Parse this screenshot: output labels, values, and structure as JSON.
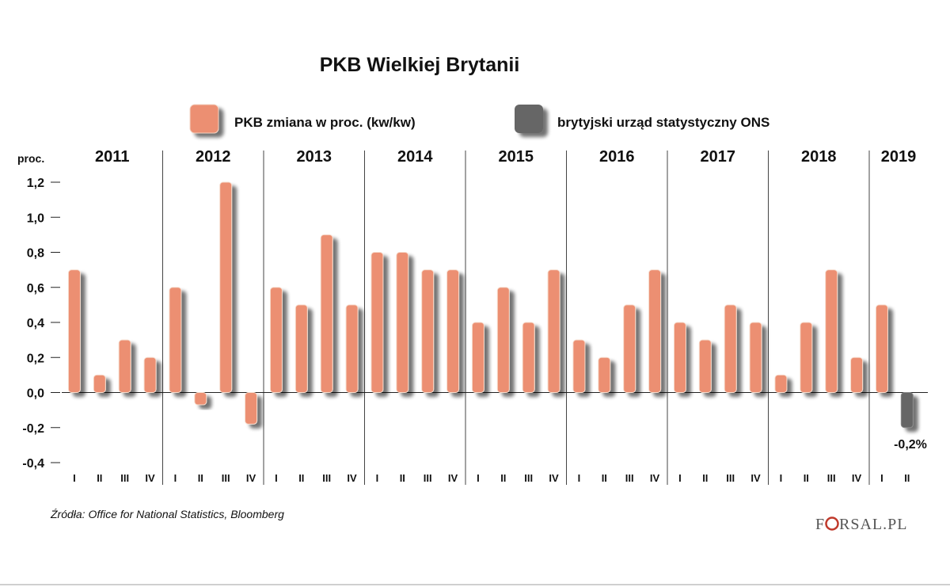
{
  "chart_data": {
    "type": "bar",
    "title": "PKB Wielkiej Brytanii",
    "ylabel": "proc.",
    "ylim": [
      -0.4,
      1.2
    ],
    "yticks": [
      "1,2",
      "1,0",
      "0,8",
      "0,6",
      "0,4",
      "0,2",
      "0,0",
      "-0,2",
      "-0,4"
    ],
    "ytick_values": [
      1.2,
      1.0,
      0.8,
      0.6,
      0.4,
      0.2,
      0.0,
      -0.2,
      -0.4
    ],
    "years": [
      "2011",
      "2012",
      "2013",
      "2014",
      "2015",
      "2016",
      "2017",
      "2018",
      "2019"
    ],
    "quarter_labels": [
      "I",
      "II",
      "III",
      "IV",
      "I",
      "II",
      "III",
      "IV",
      "I",
      "II",
      "III",
      "IV",
      "I",
      "II",
      "III",
      "IV",
      "I",
      "II",
      "III",
      "IV",
      "I",
      "II",
      "III",
      "IV",
      "I",
      "II",
      "III",
      "IV",
      "I",
      "II",
      "III",
      "IV",
      "I",
      "II"
    ],
    "series": [
      {
        "name": "PKB zmiana w proc. (kw/kw)",
        "color": "#ec8f72",
        "values": [
          0.7,
          0.1,
          0.3,
          0.2,
          0.6,
          -0.07,
          1.2,
          -0.18,
          0.6,
          0.5,
          0.9,
          0.5,
          0.8,
          0.8,
          0.7,
          0.7,
          0.4,
          0.6,
          0.4,
          0.7,
          0.3,
          0.2,
          0.5,
          0.7,
          0.4,
          0.3,
          0.5,
          0.4,
          0.1,
          0.4,
          0.7,
          0.2,
          0.5,
          null
        ]
      },
      {
        "name": "brytyjski urząd statystyczny ONS",
        "color": "#666666",
        "values": [
          null,
          null,
          null,
          null,
          null,
          null,
          null,
          null,
          null,
          null,
          null,
          null,
          null,
          null,
          null,
          null,
          null,
          null,
          null,
          null,
          null,
          null,
          null,
          null,
          null,
          null,
          null,
          null,
          null,
          null,
          null,
          null,
          null,
          -0.2
        ]
      }
    ],
    "annotation": "-0,2%",
    "legend_position": "top-center",
    "grid": false
  },
  "source_label": "Źródła:  Office for National Statistics, Bloomberg",
  "brand": {
    "pre": "F",
    "post": "RSAL.PL"
  }
}
